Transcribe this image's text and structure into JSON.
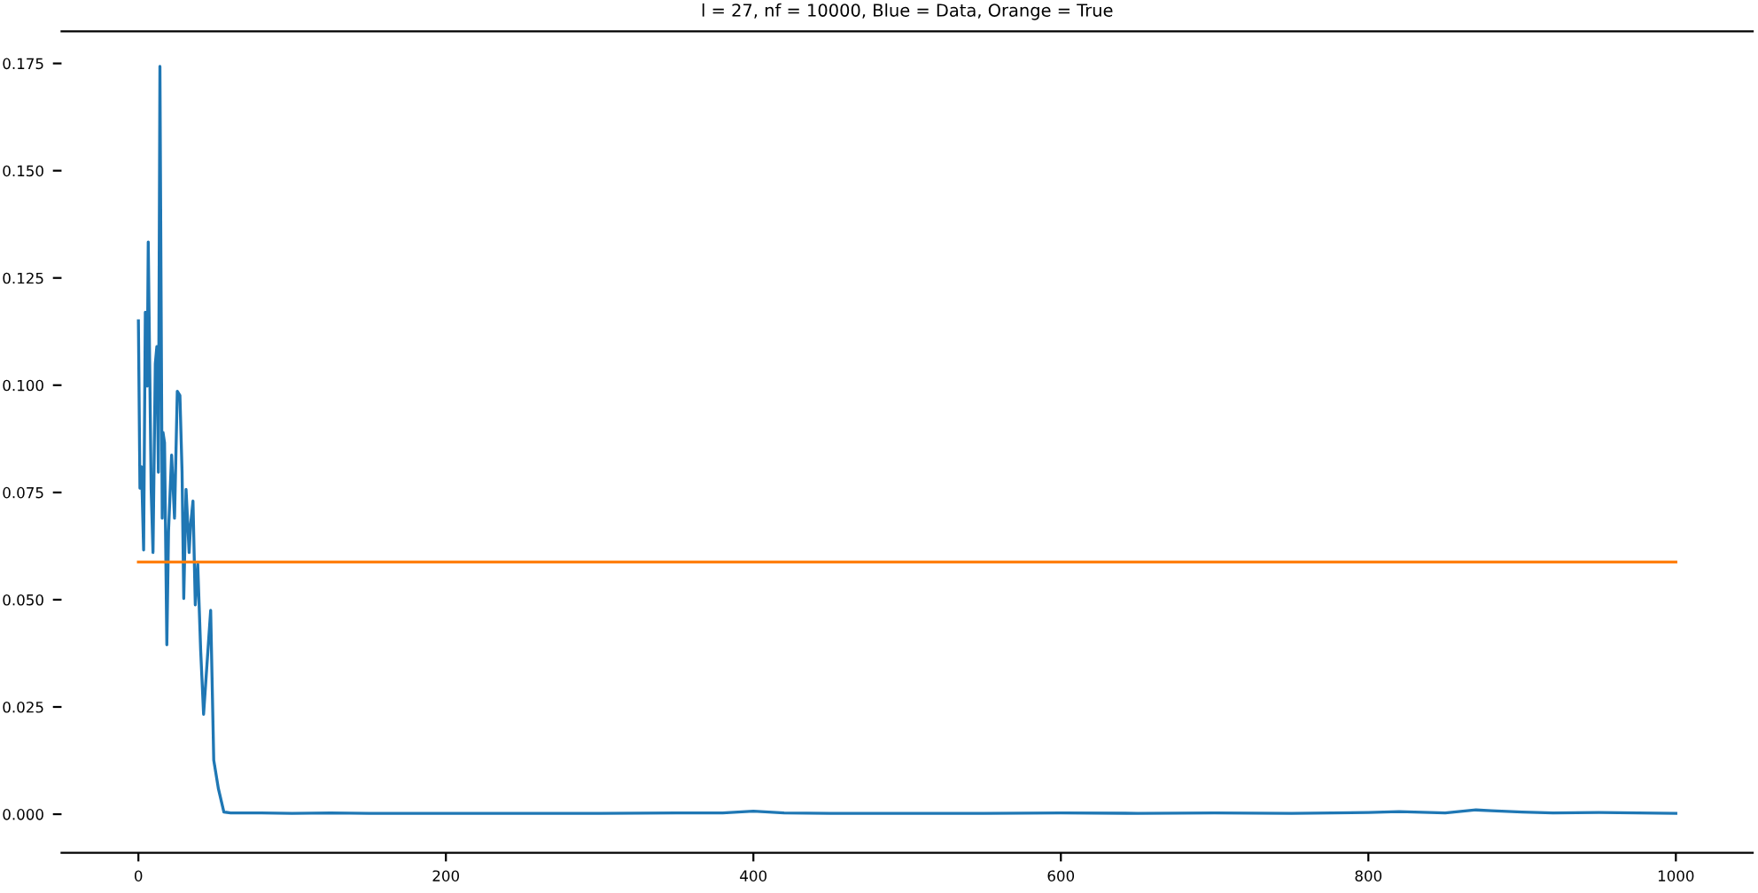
{
  "chart_data": {
    "type": "line",
    "title": "l = 27, nf = 10000, Blue = Data, Orange = True",
    "xlim": [
      -50,
      1050
    ],
    "xticks": [
      0,
      200,
      400,
      600,
      800,
      1000
    ],
    "ylim": [
      -0.009,
      0.1825
    ],
    "yticks": [
      {
        "value": 0,
        "label": "0.000"
      },
      0.025,
      {
        "value": 0.05,
        "label": "0.050"
      },
      0.075,
      {
        "value": 0.1,
        "label": "0.100"
      },
      0.125,
      {
        "value": 0.15,
        "label": "0.150"
      },
      0.175
    ],
    "grid": false,
    "series": [
      {
        "color": "#1f77b4",
        "x": [
          0,
          1,
          2,
          3.4,
          4.5,
          5.7,
          6.4,
          8.3,
          9.5,
          11,
          12,
          13,
          14,
          15.5,
          16,
          17,
          18.5,
          19.6,
          21.6,
          23.5,
          25.3,
          27,
          28.4,
          29.5,
          31,
          33,
          34,
          35.5,
          37,
          38.6,
          40.5,
          42.4,
          47,
          49,
          52,
          55.6,
          60,
          80,
          100,
          125,
          150,
          175,
          200,
          250,
          300,
          350,
          380,
          400,
          420,
          450,
          500,
          550,
          600,
          650,
          700,
          750,
          800,
          820,
          850,
          870,
          880,
          900,
          920,
          950,
          1000
        ],
        "values": [
          0.115,
          0.076,
          0.081,
          0.0616,
          0.117,
          0.0998,
          0.1334,
          0.0757,
          0.061,
          0.105,
          0.109,
          0.0797,
          0.1743,
          0.069,
          0.089,
          0.0866,
          0.0395,
          0.066,
          0.0837,
          0.069,
          0.0986,
          0.0976,
          0.0797,
          0.0503,
          0.0757,
          0.061,
          0.0676,
          0.073,
          0.0488,
          0.0583,
          0.0382,
          0.0233,
          0.0475,
          0.0126,
          0.006,
          0.0005,
          0.0003,
          0.0003,
          0.0002,
          0.0003,
          0.0002,
          0.0002,
          0.0002,
          0.0002,
          0.0002,
          0.0003,
          0.0003,
          0.0007,
          0.0003,
          0.0002,
          0.0002,
          0.0002,
          0.0003,
          0.0002,
          0.0003,
          0.0002,
          0.0004,
          0.0006,
          0.0003,
          0.001,
          0.0008,
          0.0005,
          0.0003,
          0.0004,
          0.0002
        ]
      },
      {
        "color": "#ff7f0e",
        "x": [
          0,
          1000
        ],
        "values": [
          0.0588,
          0.0588
        ]
      }
    ]
  }
}
